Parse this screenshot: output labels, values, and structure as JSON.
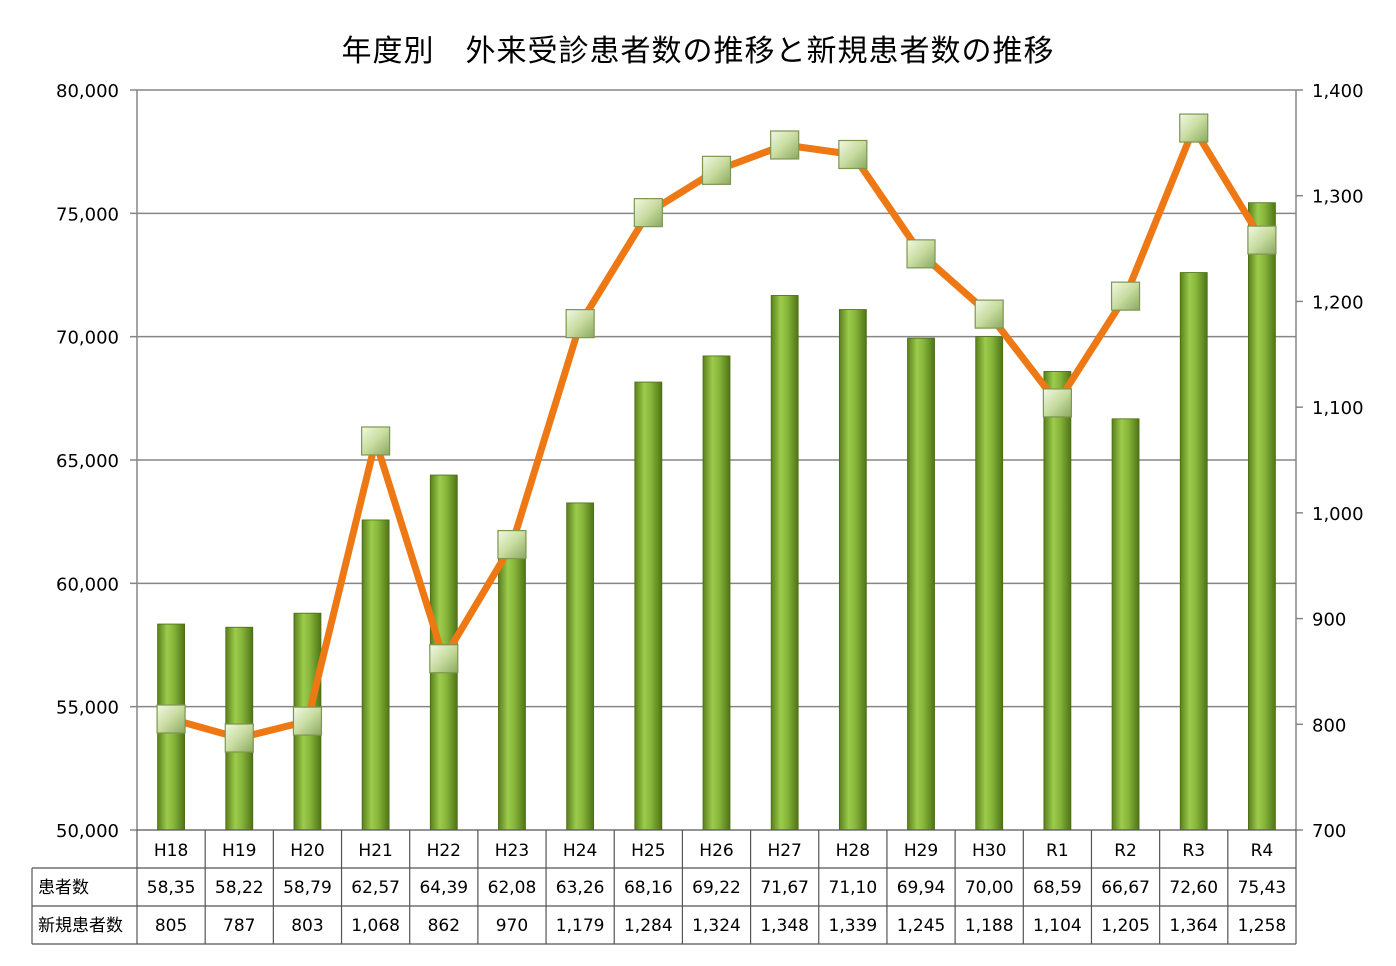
{
  "chart_data": {
    "type": "bar",
    "title": "年度別　外来受診患者数の推移と新規患者数の推移",
    "categories": [
      "H18",
      "H19",
      "H20",
      "H21",
      "H22",
      "H23",
      "H24",
      "H25",
      "H26",
      "H27",
      "H28",
      "H29",
      "H30",
      "R1",
      "R2",
      "R3",
      "R4"
    ],
    "series": [
      {
        "name": "患者数",
        "kind": "bar",
        "axis": "left",
        "color": "#7aa832",
        "values": [
          58350,
          58220,
          58790,
          62570,
          64390,
          62080,
          63260,
          68160,
          69220,
          71670,
          71100,
          69940,
          70000,
          68590,
          66670,
          72600,
          75430
        ],
        "table_labels": [
          "58,35",
          "58,22",
          "58,79",
          "62,57",
          "64,39",
          "62,08",
          "63,26",
          "68,16",
          "69,22",
          "71,67",
          "71,10",
          "69,94",
          "70,00",
          "68,59",
          "66,67",
          "72,60",
          "75,43"
        ]
      },
      {
        "name": "新規患者数",
        "kind": "line",
        "axis": "right",
        "color": "#ee7814",
        "marker_color": "#c8dca0",
        "values": [
          805,
          787,
          803,
          1068,
          862,
          970,
          1179,
          1284,
          1324,
          1348,
          1339,
          1245,
          1188,
          1104,
          1205,
          1364,
          1258
        ],
        "table_labels": [
          "805",
          "787",
          "803",
          "1,068",
          "862",
          "970",
          "1,179",
          "1,284",
          "1,324",
          "1,348",
          "1,339",
          "1,245",
          "1,188",
          "1,104",
          "1,205",
          "1,364",
          "1,258"
        ]
      }
    ],
    "y_left": {
      "min": 50000,
      "max": 80000,
      "ticks": [
        "50,000",
        "55,000",
        "60,000",
        "65,000",
        "70,000",
        "75,000",
        "80,000"
      ]
    },
    "y_right": {
      "min": 700,
      "max": 1400,
      "ticks": [
        "700",
        "800",
        "900",
        "1,000",
        "1,100",
        "1,200",
        "1,300",
        "1,400"
      ]
    },
    "grid": true,
    "legend": "data-table"
  }
}
